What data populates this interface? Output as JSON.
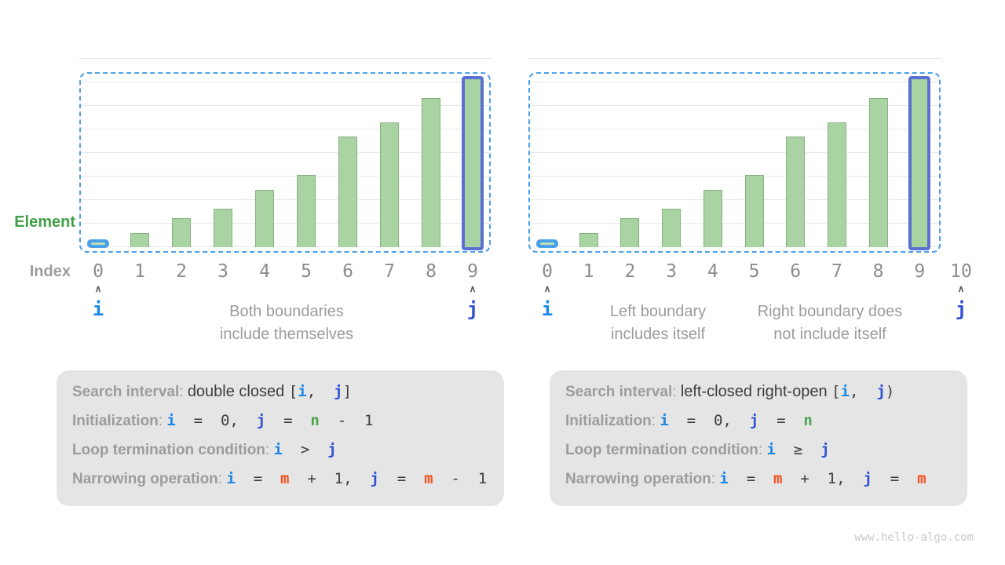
{
  "page": {
    "watermark": "www.hello-algo.com"
  },
  "axis_labels": {
    "element": "Element",
    "index": "Index"
  },
  "colors": {
    "bar_fill": "#a9d3a3",
    "bar_stroke": "#85b37d",
    "highlight_border": "#5a6fd1",
    "interval_dash_blue": "#4aa0e8",
    "element_pill_blue": "#4aa1e8",
    "var_i": "#1e88e5",
    "var_j": "#3353d1",
    "var_n": "#4ea44e",
    "var_m": "#f4511e",
    "label_gray": "#9c9c9c",
    "text_dark": "#3d3d3d",
    "element_green": "#43a047",
    "box_bg": "#e5e5e5"
  },
  "chart_data": [
    {
      "type": "bar",
      "name": "double-closed",
      "categories": [
        "0",
        "1",
        "2",
        "3",
        "4",
        "5",
        "6",
        "7",
        "8",
        "9"
      ],
      "values": [
        1,
        3,
        6,
        8,
        12,
        15,
        23,
        26,
        31,
        35
      ],
      "xlabel": "Index",
      "ylabel": "Element",
      "grid": true,
      "pill_index": 0,
      "highlight_index": 9,
      "i_marker": {
        "label": "i",
        "index": 0
      },
      "j_marker": {
        "label": "j",
        "index": 9
      },
      "captions": [
        {
          "lines": [
            "Both boundaries",
            "include themselves"
          ]
        }
      ]
    },
    {
      "type": "bar",
      "name": "left-closed-right-open",
      "categories": [
        "0",
        "1",
        "2",
        "3",
        "4",
        "5",
        "6",
        "7",
        "8",
        "9",
        "10"
      ],
      "values": [
        1,
        3,
        6,
        8,
        12,
        15,
        23,
        26,
        31,
        35
      ],
      "xlabel": "Index",
      "ylabel": "Element",
      "grid": true,
      "pill_index": 0,
      "highlight_index": 9,
      "i_marker": {
        "label": "i",
        "index": 0
      },
      "j_marker": {
        "label": "j",
        "index": 10
      },
      "captions": [
        {
          "lines": [
            "Left boundary",
            "includes itself"
          ]
        },
        {
          "lines": [
            "Right boundary does",
            "not include itself"
          ]
        }
      ]
    }
  ],
  "boxes": [
    {
      "name": "double-closed",
      "rows": [
        [
          [
            "g",
            "Search interval"
          ],
          [
            "p",
            ": "
          ],
          [
            "t",
            "double closed "
          ],
          [
            "c",
            "["
          ],
          [
            "i",
            "i"
          ],
          [
            "c",
            ",  "
          ],
          [
            "j",
            "j"
          ],
          [
            "c",
            "]"
          ]
        ],
        [
          [
            "g",
            "Initialization"
          ],
          [
            "p",
            ": "
          ],
          [
            "i",
            "i"
          ],
          [
            "c",
            "  =  0,  "
          ],
          [
            "j",
            "j"
          ],
          [
            "c",
            "  =  "
          ],
          [
            "n",
            "n"
          ],
          [
            "c",
            "  -  1"
          ]
        ],
        [
          [
            "g",
            "Loop termination condition"
          ],
          [
            "p",
            ": "
          ],
          [
            "i",
            "i"
          ],
          [
            "c",
            "  >  "
          ],
          [
            "j",
            "j"
          ]
        ],
        [
          [
            "g",
            "Narrowing operation"
          ],
          [
            "p",
            ": "
          ],
          [
            "i",
            "i"
          ],
          [
            "c",
            "  =  "
          ],
          [
            "m",
            "m"
          ],
          [
            "c",
            "  +  1,  "
          ],
          [
            "j",
            "j"
          ],
          [
            "c",
            "  =  "
          ],
          [
            "m",
            "m"
          ],
          [
            "c",
            "  -  1"
          ]
        ]
      ]
    },
    {
      "name": "left-closed-right-open",
      "rows": [
        [
          [
            "g",
            "Search interval"
          ],
          [
            "p",
            ": "
          ],
          [
            "t",
            "left-closed right-open "
          ],
          [
            "c",
            "["
          ],
          [
            "i",
            "i"
          ],
          [
            "c",
            ",  "
          ],
          [
            "j",
            "j"
          ],
          [
            "c",
            ")"
          ]
        ],
        [
          [
            "g",
            "Initialization"
          ],
          [
            "p",
            ": "
          ],
          [
            "i",
            "i"
          ],
          [
            "c",
            "  =  0,  "
          ],
          [
            "j",
            "j"
          ],
          [
            "c",
            "  =  "
          ],
          [
            "n",
            "n"
          ]
        ],
        [
          [
            "g",
            "Loop termination condition"
          ],
          [
            "p",
            ": "
          ],
          [
            "i",
            "i"
          ],
          [
            "c",
            "  ≥  "
          ],
          [
            "j",
            "j"
          ]
        ],
        [
          [
            "g",
            "Narrowing operation"
          ],
          [
            "p",
            ": "
          ],
          [
            "i",
            "i"
          ],
          [
            "c",
            "  =  "
          ],
          [
            "m",
            "m"
          ],
          [
            "c",
            "  +  1,  "
          ],
          [
            "j",
            "j"
          ],
          [
            "c",
            "  =  "
          ],
          [
            "m",
            "m"
          ]
        ]
      ]
    }
  ]
}
